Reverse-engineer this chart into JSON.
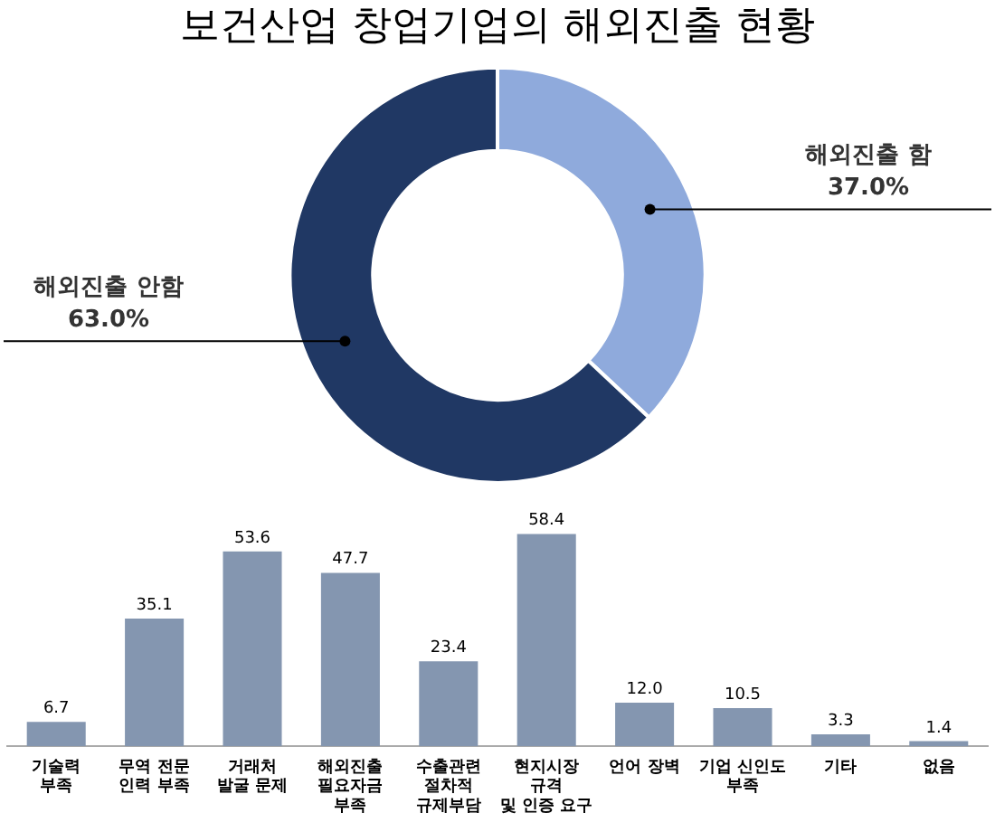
{
  "chart_data": [
    {
      "type": "donut",
      "title": "보건산업 창업기업의 해외진출 현황",
      "categories": [
        "해외진출 함",
        "해외진출 안함"
      ],
      "values": [
        37.0,
        63.0
      ],
      "colors": [
        "#8faadc",
        "#203864"
      ],
      "value_labels": [
        "37.0%",
        "63.0%"
      ],
      "legend": false
    },
    {
      "type": "bar",
      "categories": [
        "기술력\n부족",
        "무역 전문\n인력 부족",
        "거래처\n발굴 문제",
        "해외진출\n필요자금\n부족",
        "수출관련\n절차적\n규제부담",
        "현지시장\n규격\n및 인증 요구",
        "언어 장벽",
        "기업 신인도\n부족",
        "기타",
        "없음"
      ],
      "values": [
        6.7,
        35.1,
        53.6,
        47.7,
        23.4,
        58.4,
        12.0,
        10.5,
        3.3,
        1.4
      ],
      "color": "#8496b0",
      "value_labels": [
        "6.7",
        "35.1",
        "53.6",
        "47.7",
        "23.4",
        "58.4",
        "12.0",
        "10.5",
        "3.3",
        "1.4"
      ],
      "legend": false,
      "grid": false
    }
  ]
}
